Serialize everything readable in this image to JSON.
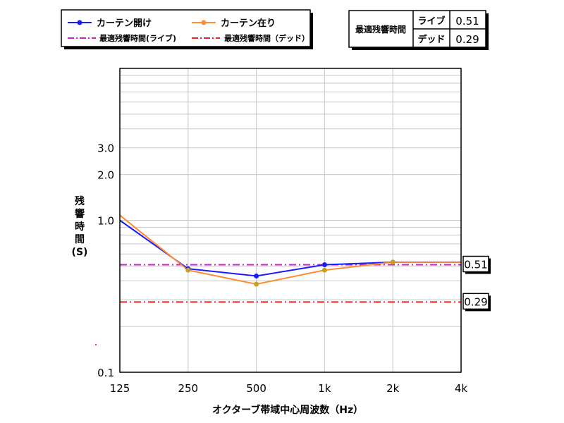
{
  "chart_data": {
    "type": "line",
    "categories": [
      "125",
      "250",
      "500",
      "1k",
      "2k",
      "4k"
    ],
    "x_axis_label": "オクターブ帯域中心周波数（Hz）",
    "y_axis_label_lines": [
      "残",
      "響",
      "時",
      "間",
      "(S)"
    ],
    "y_scale": "log",
    "ylim": [
      0.1,
      10
    ],
    "y_tick_labels": [
      {
        "value": 0.1,
        "label": "0.1"
      },
      {
        "value": 1.0,
        "label": "1.0"
      },
      {
        "value": 2.0,
        "label": "2.0"
      },
      {
        "value": 3.0,
        "label": "3.0"
      }
    ],
    "grid": true,
    "series": [
      {
        "name": "カーテン開け",
        "color": "#1a1aff",
        "marker_color": "#1a1aff",
        "values": [
          1.0,
          0.48,
          0.43,
          0.51,
          0.53,
          0.53
        ]
      },
      {
        "name": "カーテン在り",
        "color": "#ff8c33",
        "marker_color": "#c8a020",
        "values": [
          1.08,
          0.47,
          0.38,
          0.47,
          0.53,
          0.53
        ]
      }
    ],
    "reference_lines": [
      {
        "name": "最適残響時間(ライブ)",
        "value": 0.51,
        "label": "0.51",
        "color": "#cc22cc"
      },
      {
        "name": "最適残響時間（デッド）",
        "value": 0.29,
        "label": "0.29",
        "color": "#ee2222"
      }
    ],
    "legend_position": "top-left"
  },
  "info_table": {
    "title": "最適残響時間",
    "rows": [
      {
        "label": "ライブ",
        "value": "0.51"
      },
      {
        "label": "デッド",
        "value": "0.29"
      }
    ]
  }
}
